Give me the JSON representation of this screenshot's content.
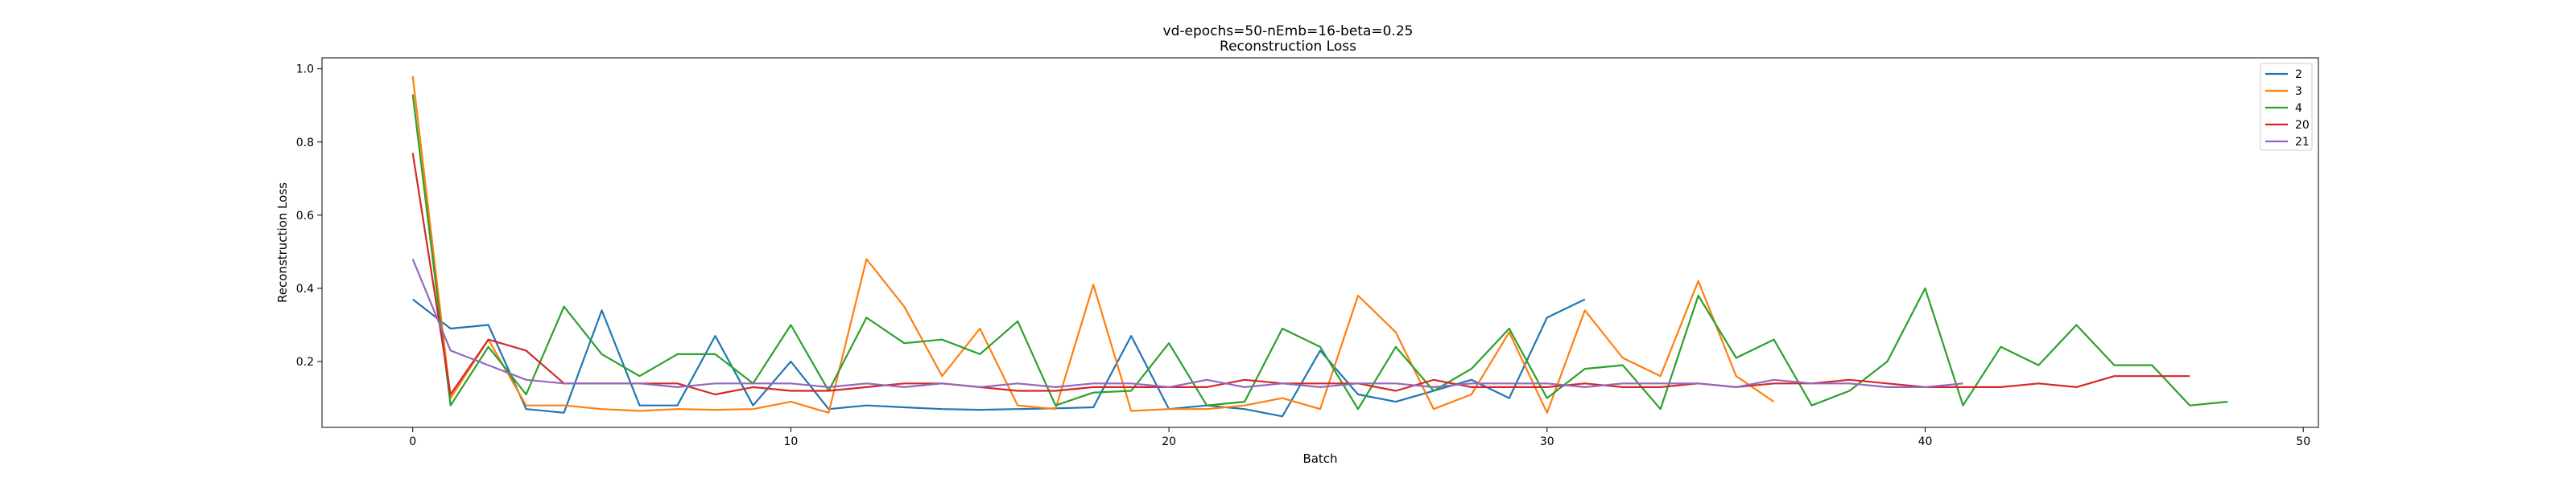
{
  "chart_data": {
    "type": "line",
    "title": "vd-epochs=50-nEmb=16-beta=0.25",
    "subtitle": "Reconstruction Loss",
    "xlabel": "Batch",
    "ylabel": "Reconstruction Loss",
    "xlim": [
      -2.4,
      50.4
    ],
    "ylim": [
      0.02,
      1.03
    ],
    "xticks": [
      0,
      10,
      20,
      30,
      40,
      50
    ],
    "yticks": [
      0.2,
      0.4,
      0.6,
      0.8,
      1.0
    ],
    "ytick_labels": [
      "0.2",
      "0.4",
      "0.6",
      "0.8",
      "1.0"
    ],
    "grid": false,
    "legend_position": "top-right",
    "series": [
      {
        "name": "2",
        "color": "#1f77b4",
        "values": [
          0.37,
          0.29,
          0.3,
          0.07,
          0.06,
          0.34,
          0.08,
          0.08,
          0.27,
          0.08,
          0.2,
          0.07,
          0.08,
          0.075,
          0.07,
          0.068,
          0.07,
          0.072,
          0.075,
          0.27,
          0.07,
          0.08,
          0.07,
          0.05,
          0.23,
          0.11,
          0.09,
          0.12,
          0.15,
          0.1,
          0.32,
          0.37
        ]
      },
      {
        "name": "3",
        "color": "#ff7f0e",
        "values": [
          0.98,
          0.1,
          0.26,
          0.08,
          0.08,
          0.07,
          0.065,
          0.07,
          0.068,
          0.07,
          0.09,
          0.06,
          0.48,
          0.35,
          0.16,
          0.29,
          0.08,
          0.07,
          0.41,
          0.065,
          0.07,
          0.07,
          0.08,
          0.1,
          0.07,
          0.38,
          0.28,
          0.07,
          0.11,
          0.28,
          0.06,
          0.34,
          0.21,
          0.16,
          0.42,
          0.16,
          0.09
        ]
      },
      {
        "name": "4",
        "color": "#2ca02c",
        "values": [
          0.93,
          0.08,
          0.24,
          0.11,
          0.35,
          0.22,
          0.16,
          0.22,
          0.22,
          0.14,
          0.3,
          0.12,
          0.32,
          0.25,
          0.26,
          0.22,
          0.31,
          0.08,
          0.115,
          0.12,
          0.25,
          0.08,
          0.09,
          0.29,
          0.24,
          0.07,
          0.24,
          0.12,
          0.18,
          0.29,
          0.1,
          0.18,
          0.19,
          0.07,
          0.38,
          0.21,
          0.26,
          0.08,
          0.12,
          0.2,
          0.4,
          0.08,
          0.24,
          0.19,
          0.3,
          0.19,
          0.19,
          0.08,
          0.09
        ]
      },
      {
        "name": "20",
        "color": "#d62728",
        "values": [
          0.77,
          0.11,
          0.26,
          0.23,
          0.14,
          0.14,
          0.14,
          0.14,
          0.11,
          0.13,
          0.12,
          0.12,
          0.13,
          0.14,
          0.14,
          0.13,
          0.12,
          0.12,
          0.13,
          0.13,
          0.13,
          0.13,
          0.15,
          0.14,
          0.14,
          0.14,
          0.12,
          0.15,
          0.13,
          0.13,
          0.13,
          0.14,
          0.13,
          0.13,
          0.14,
          0.13,
          0.14,
          0.14,
          0.15,
          0.14,
          0.13,
          0.13,
          0.13,
          0.14,
          0.13,
          0.16,
          0.16,
          0.16
        ]
      },
      {
        "name": "21",
        "color": "#9467bd",
        "values": [
          0.48,
          0.23,
          0.19,
          0.15,
          0.14,
          0.14,
          0.14,
          0.13,
          0.14,
          0.14,
          0.14,
          0.13,
          0.14,
          0.13,
          0.14,
          0.13,
          0.14,
          0.13,
          0.14,
          0.14,
          0.13,
          0.15,
          0.13,
          0.14,
          0.13,
          0.14,
          0.14,
          0.13,
          0.14,
          0.14,
          0.14,
          0.13,
          0.14,
          0.14,
          0.14,
          0.13,
          0.15,
          0.14,
          0.14,
          0.13,
          0.13,
          0.14
        ]
      }
    ]
  }
}
